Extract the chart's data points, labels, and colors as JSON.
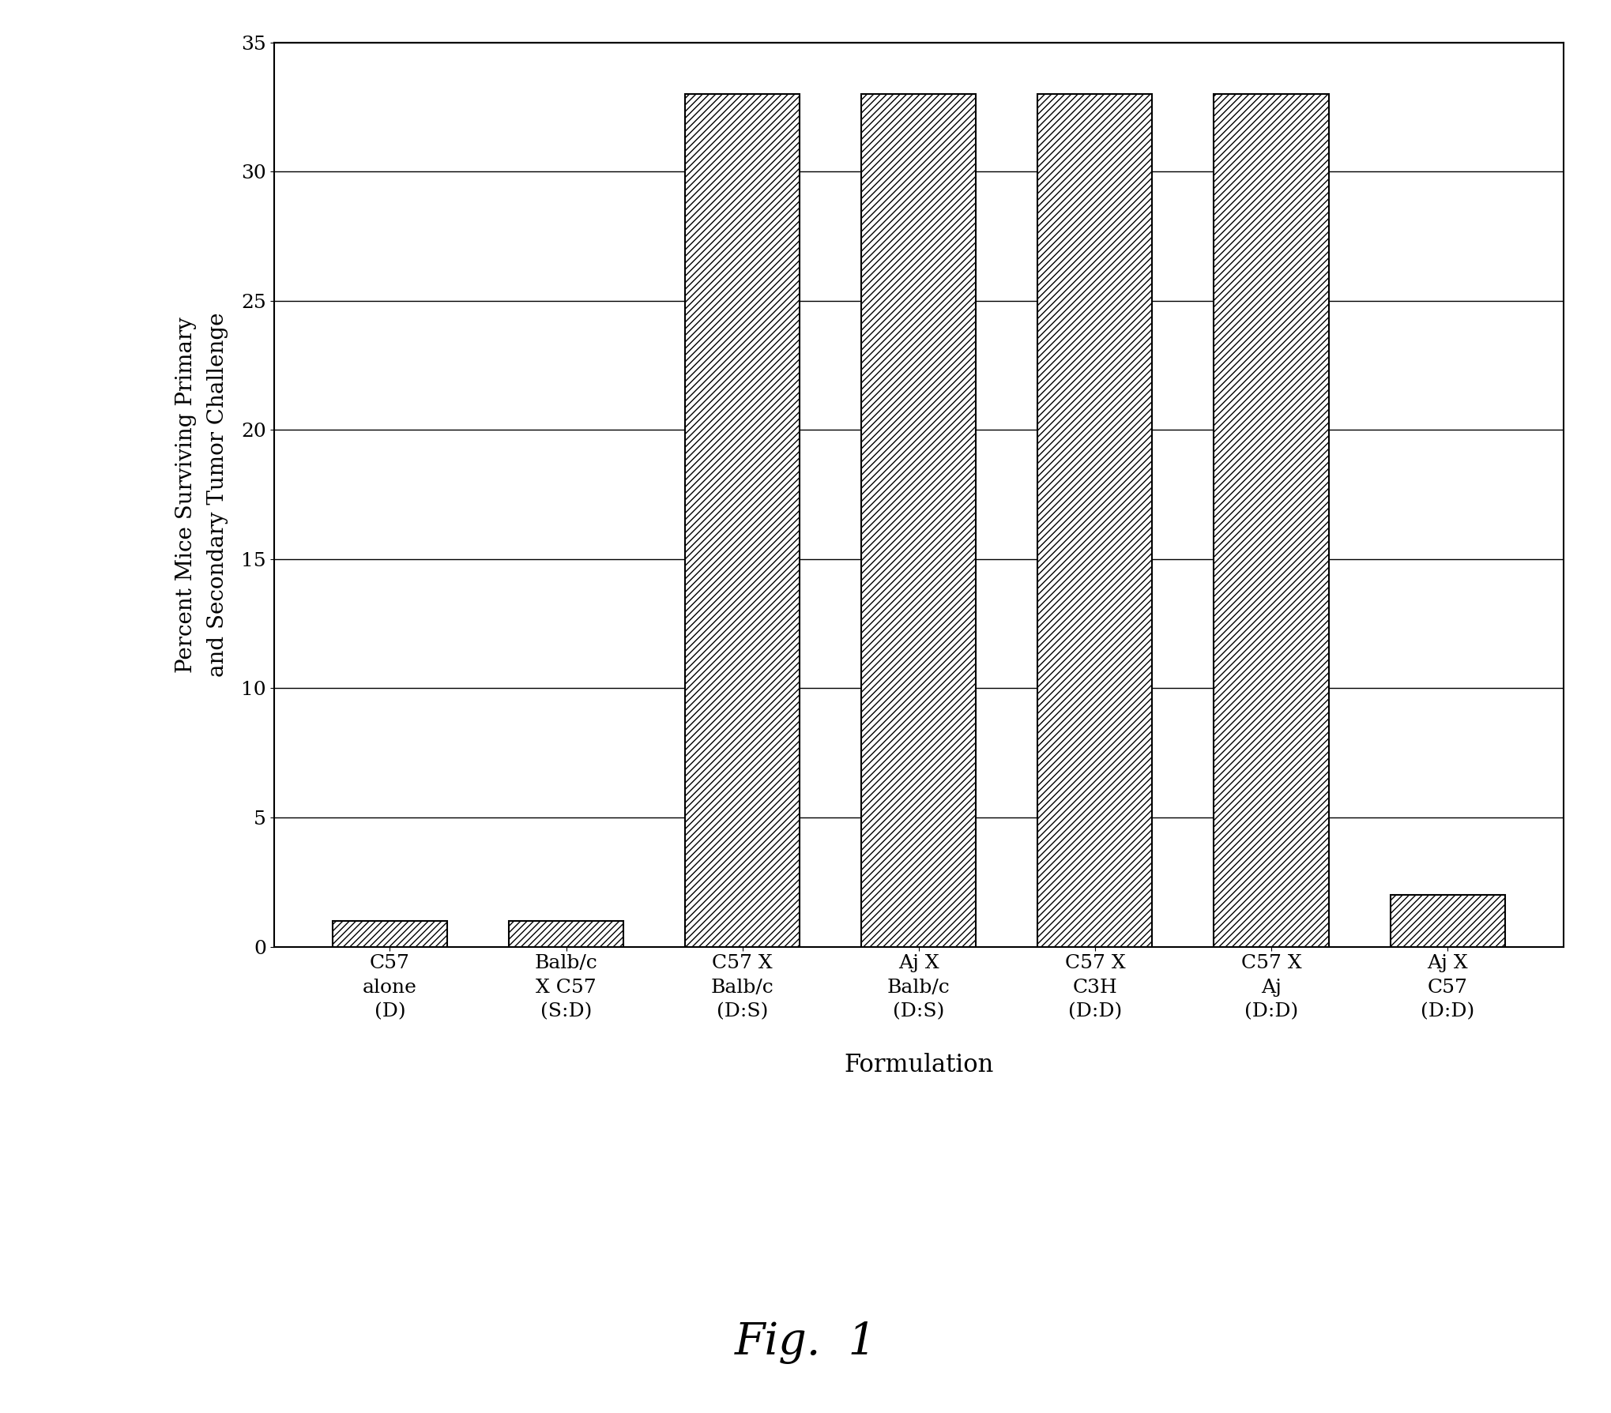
{
  "categories": [
    "C57\nalone\n(D)",
    "Balb/c\nX C57\n(S:D)",
    "C57 X\nBalb/c\n(D:S)",
    "Aj X\nBalb/c\n(D:S)",
    "C57 X\nC3H\n(D:D)",
    "C57 X\nAj\n(D:D)",
    "Aj X\nC57\n(D:D)"
  ],
  "values": [
    1.0,
    1.0,
    33.0,
    33.0,
    33.0,
    33.0,
    2.0
  ],
  "ylim": [
    0,
    35
  ],
  "yticks": [
    0,
    5,
    10,
    15,
    20,
    25,
    30,
    35
  ],
  "ylabel": "Percent Mice Surviving Primary\nand Secondary Tumor Challenge",
  "xlabel": "Formulation",
  "fig_caption": "Fig.  1",
  "background_color": "#ffffff",
  "bar_color": "#ffffff",
  "bar_edgecolor": "#000000",
  "hatch_pattern": "////",
  "ylabel_fontsize": 20,
  "xlabel_fontsize": 22,
  "tick_fontsize": 18,
  "caption_fontsize": 40
}
